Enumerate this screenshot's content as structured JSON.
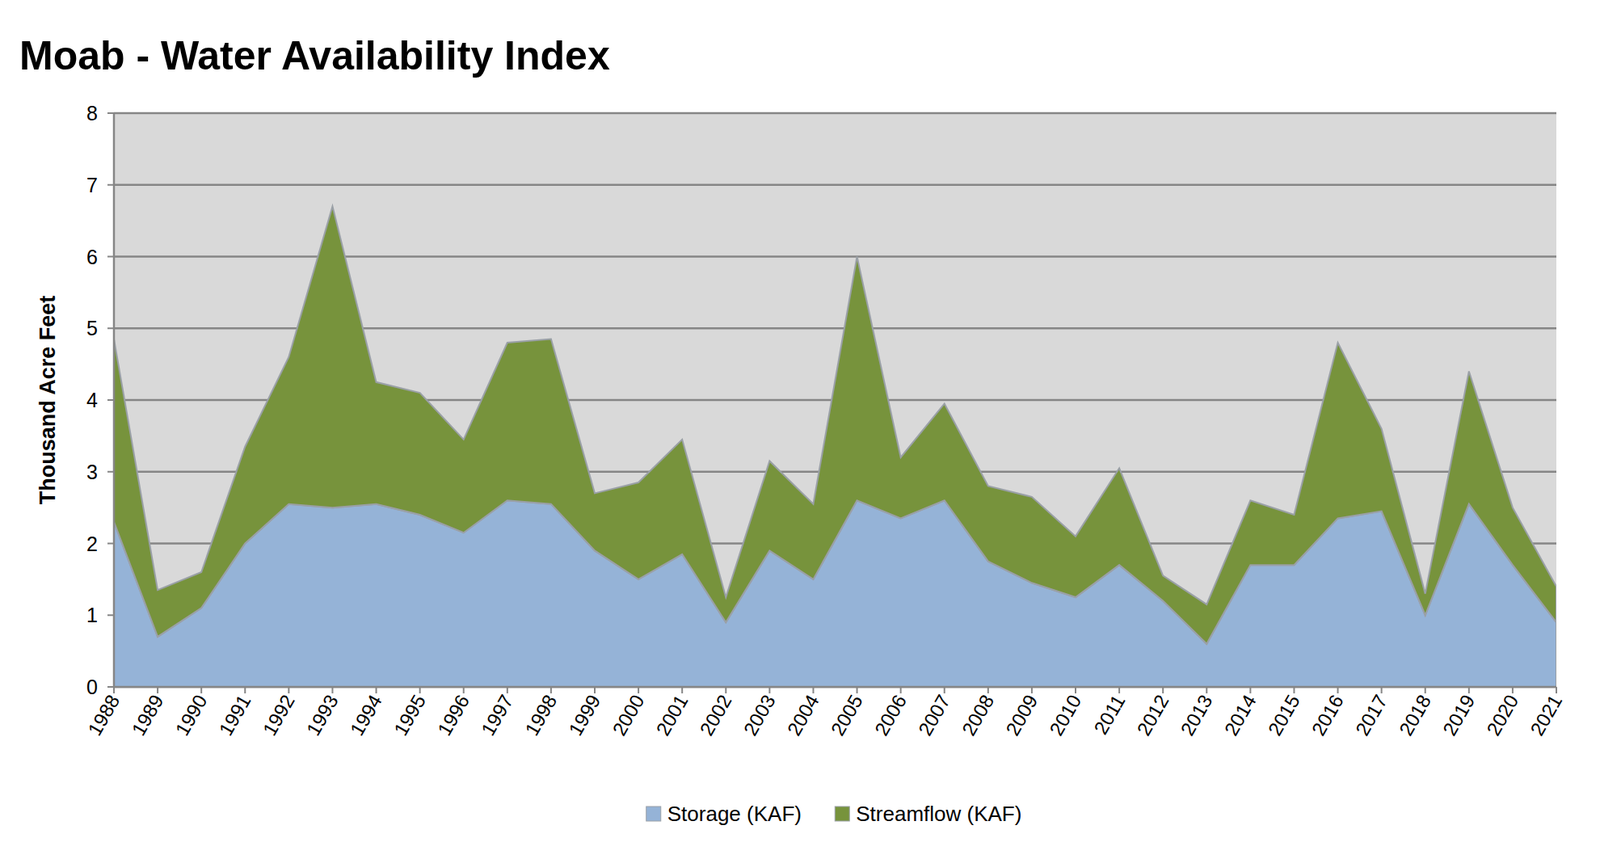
{
  "chart_data": {
    "type": "area",
    "title": "Moab - Water Availability Index",
    "y_label": "Thousand Acre Feet",
    "categories": [
      "1988",
      "1989",
      "1990",
      "1991",
      "1992",
      "1993",
      "1994",
      "1995",
      "1996",
      "1997",
      "1998",
      "1999",
      "2000",
      "2001",
      "2002",
      "2003",
      "2004",
      "2005",
      "2006",
      "2007",
      "2008",
      "2009",
      "2010",
      "2011",
      "2012",
      "2013",
      "2014",
      "2015",
      "2016",
      "2017",
      "2018",
      "2019",
      "2020",
      "2021"
    ],
    "series": [
      {
        "name": "Storage (KAF)",
        "color": "#95b3d7",
        "values": [
          2.3,
          0.7,
          1.1,
          2.0,
          2.55,
          2.5,
          2.55,
          2.4,
          2.15,
          2.6,
          2.55,
          1.9,
          1.5,
          1.85,
          0.9,
          1.9,
          1.5,
          2.6,
          2.35,
          2.6,
          1.75,
          1.45,
          1.25,
          1.7,
          1.2,
          0.6,
          1.7,
          1.7,
          2.35,
          2.45,
          1.0,
          2.55,
          1.7,
          0.9
        ]
      },
      {
        "name": "Streamflow (KAF)",
        "color": "#77933c",
        "values": [
          2.55,
          0.65,
          0.5,
          1.35,
          2.05,
          4.2,
          1.7,
          1.7,
          1.3,
          2.2,
          2.3,
          0.8,
          1.35,
          1.6,
          0.35,
          1.25,
          1.05,
          3.4,
          0.85,
          1.35,
          1.05,
          1.2,
          0.85,
          1.35,
          0.35,
          0.55,
          0.9,
          0.7,
          2.45,
          1.15,
          0.3,
          1.85,
          0.8,
          0.5
        ]
      }
    ],
    "stacked": true,
    "ylim": [
      0,
      8
    ],
    "yticks": [
      0,
      1,
      2,
      3,
      4,
      5,
      6,
      7,
      8
    ],
    "grid": true,
    "legend": "bottom"
  }
}
